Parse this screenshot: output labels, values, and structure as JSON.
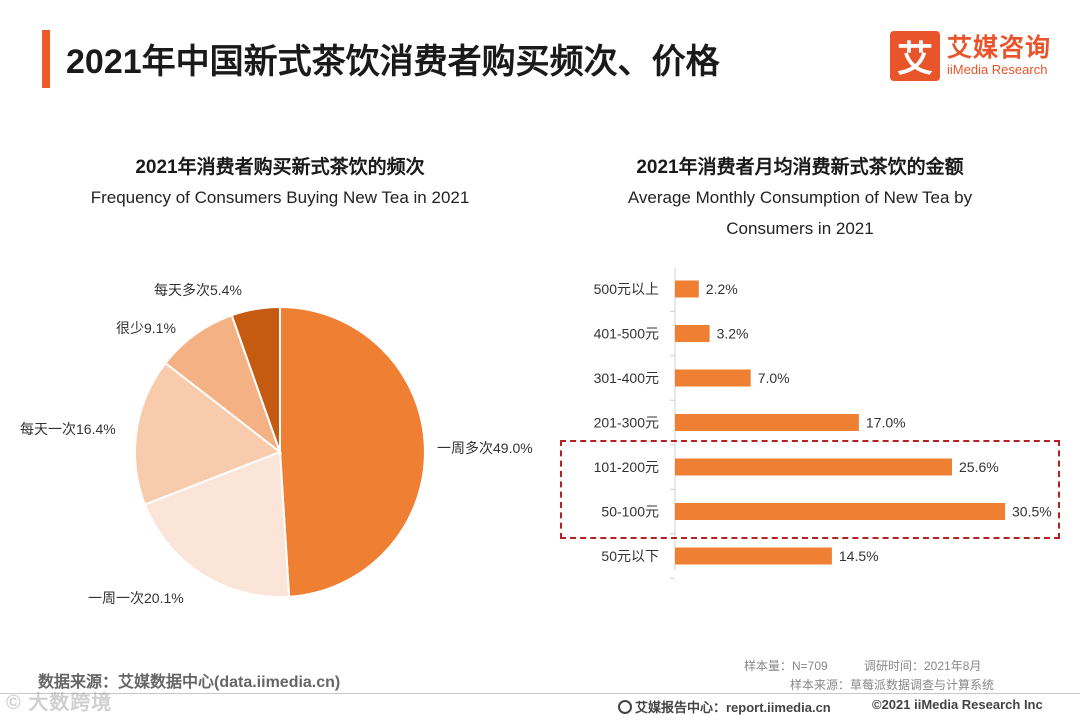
{
  "header": {
    "title": "2021年中国新式茶饮消费者购买频次、价格",
    "logo_mark": "艾",
    "logo_cn": "艾媒咨询",
    "logo_en": "iiMedia Research"
  },
  "chart_data": [
    {
      "type": "pie",
      "title": "2021年消费者购买新式茶饮的频次",
      "subtitle": "Frequency of Consumers Buying New Tea in 2021",
      "slices": [
        {
          "label": "一周多次",
          "value": 49.0,
          "text": "一周多次49.0%",
          "color": "#ef8033"
        },
        {
          "label": "一周一次",
          "value": 20.1,
          "text": "一周一次20.1%",
          "color": "#fbe5d8"
        },
        {
          "label": "每天一次",
          "value": 16.4,
          "text": "每天一次16.4%",
          "color": "#f8cbad"
        },
        {
          "label": "很少",
          "value": 9.1,
          "text": "很少9.1%",
          "color": "#f4b183"
        },
        {
          "label": "每天多次",
          "value": 5.4,
          "text": "每天多次5.4%",
          "color": "#c55a11"
        }
      ]
    },
    {
      "type": "bar",
      "orientation": "horizontal",
      "title": "2021年消费者月均消费新式茶饮的金额",
      "subtitle_lines": [
        "Average Monthly Consumption of New Tea by",
        "Consumers in 2021"
      ],
      "categories": [
        "500元以上",
        "401-500元",
        "301-400元",
        "201-300元",
        "101-200元",
        "50-100元",
        "50元以下"
      ],
      "values": [
        2.2,
        3.2,
        7.0,
        17.0,
        25.6,
        30.5,
        14.5
      ],
      "value_labels": [
        "2.2%",
        "3.2%",
        "7.0%",
        "17.0%",
        "25.6%",
        "30.5%",
        "14.5%"
      ],
      "xlim": [
        0,
        30.5
      ],
      "color": "#ef8033",
      "highlighted": [
        "101-200元",
        "50-100元"
      ]
    }
  ],
  "footer": {
    "source": "数据来源：艾媒数据中心(data.iimedia.cn)",
    "sample_size": "样本量：N=709",
    "survey_time": "调研时间：2021年8月",
    "sample_source": "样本来源：草莓派数据调查与计算系统",
    "report_center": "艾媒报告中心：report.iimedia.cn",
    "copyright": "©2021  iiMedia Research  Inc",
    "watermark": "© 大数跨境"
  }
}
